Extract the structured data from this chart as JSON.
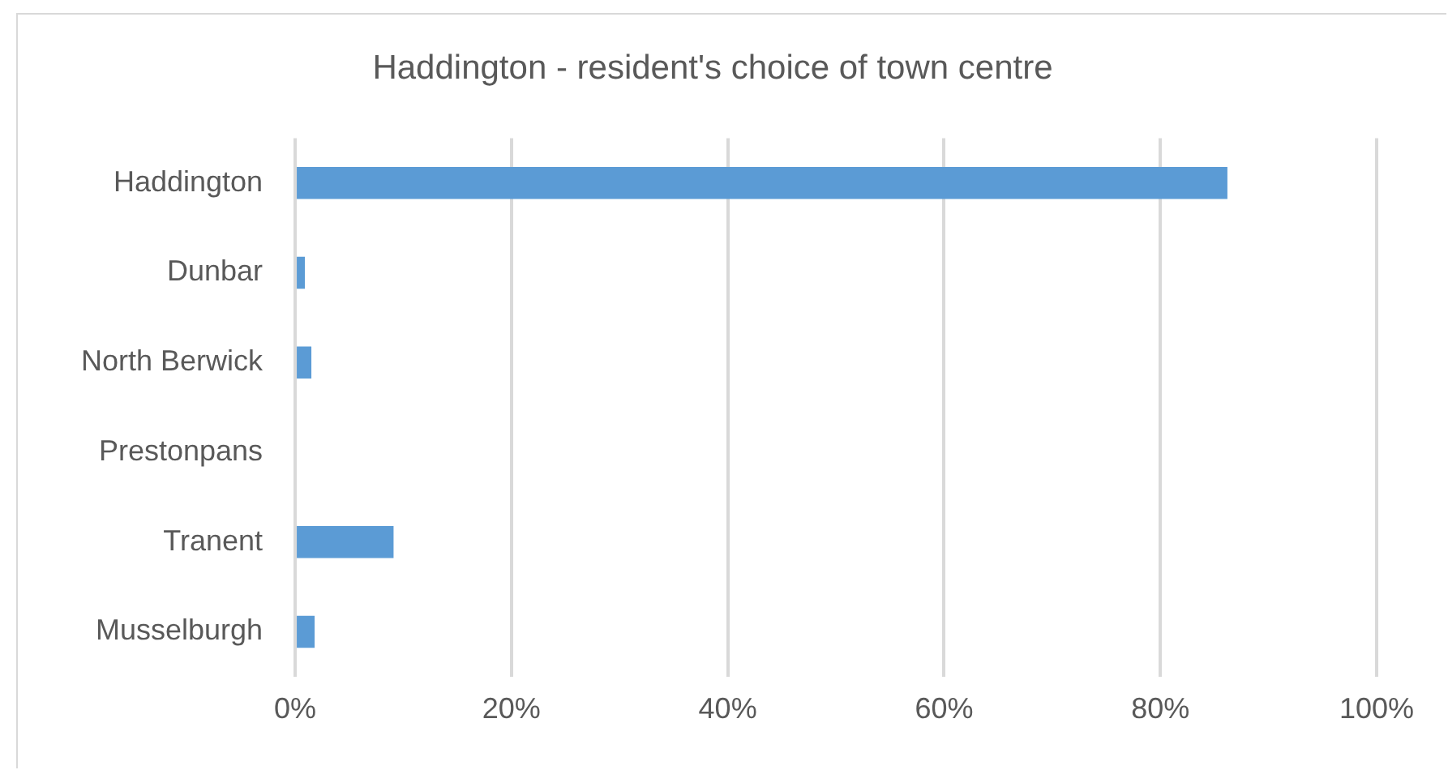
{
  "chart_data": {
    "type": "bar",
    "orientation": "horizontal",
    "title": "Haddington - resident's choice of town centre",
    "categories": [
      "Haddington",
      "Dunbar",
      "North Berwick",
      "Prestonpans",
      "Tranent",
      "Musselburgh"
    ],
    "values": [
      86.2,
      0.9,
      1.5,
      0,
      9.1,
      1.8
    ],
    "color": "#5b9bd5",
    "xlim": [
      0,
      100
    ],
    "xticks": [
      {
        "value": 0,
        "label": "0%"
      },
      {
        "value": 20,
        "label": "20%"
      },
      {
        "value": 40,
        "label": "40%"
      },
      {
        "value": 60,
        "label": "60%"
      },
      {
        "value": 80,
        "label": "80%"
      },
      {
        "value": 100,
        "label": "100%"
      }
    ],
    "grid": "x"
  }
}
